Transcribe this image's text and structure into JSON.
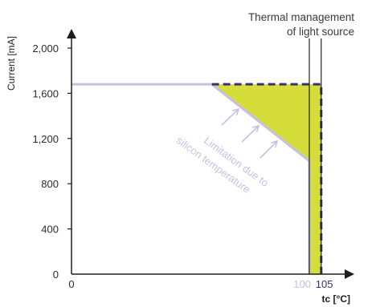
{
  "chart_data": {
    "type": "area",
    "ylabel": "Current [mA]",
    "xlabel": "tc [°C]",
    "xlim": [
      0,
      110
    ],
    "ylim": [
      0,
      2150
    ],
    "y_ticks": [
      0,
      400,
      800,
      1200,
      1600,
      2000
    ],
    "y_tick_labels": [
      "0",
      "400",
      "800",
      "1,200",
      "1,600",
      "2,000"
    ],
    "x_tick_labels": {
      "zero": "0",
      "limit_silicon": "100",
      "limit_thermal": "105"
    },
    "x_ticks": [
      0,
      100,
      105
    ],
    "series": [
      {
        "values_x": [
          0,
          59,
          100,
          100
        ],
        "values_y": [
          1680,
          1680,
          1000,
          0
        ]
      },
      {
        "values_x": [
          0,
          105,
          105
        ],
        "values_y": [
          1680,
          1680,
          0
        ]
      }
    ],
    "annotations": {
      "silicon_line1": "Limitation due to",
      "silicon_line2": "silicon temperature",
      "thermal_line1": "Thermal management",
      "thermal_line2": "of light source"
    },
    "colors": {
      "fill": "#d5dd3a",
      "silicon_limit": "#c6c0e4",
      "thermal_limit": "#3a3270",
      "vertical_marker": "#222222"
    }
  }
}
